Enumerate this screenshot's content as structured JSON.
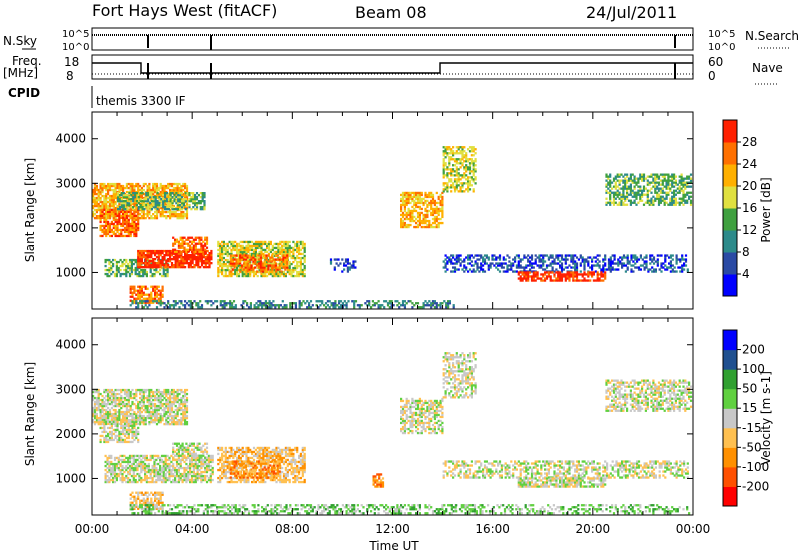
{
  "header": {
    "station": "Fort Hays West (fitACF)",
    "beam": "Beam 08",
    "date": "24/Jul/2011"
  },
  "status_panels": {
    "nsky_label": "N.Sky",
    "nsearch_label": "N.Search",
    "nsky_ticks": [
      "10^5",
      "10^0"
    ],
    "freq_label_1": "Freq.",
    "freq_label_2": "[MHz]",
    "freq_ticks": [
      "18",
      "8"
    ],
    "nave_label": "Nave",
    "nave_ticks": [
      "60",
      "0"
    ],
    "cpid_label": "CPID",
    "cpid_text": "themis 3300 IF"
  },
  "chart_data": [
    {
      "type": "heatmap",
      "name": "power",
      "ylabel": "Slant Range [km]",
      "xlabel": "",
      "x_range_hours": [
        0,
        24
      ],
      "ylim": [
        180,
        4600
      ],
      "yticks": [
        1000,
        2000,
        3000,
        4000
      ],
      "colorbar_label": "Power [dB]",
      "colorbar_ticks": [
        "28",
        "24",
        "20",
        "16",
        "12",
        "8",
        "4"
      ],
      "colorbar_colors": [
        "#0000ff",
        "#2a4aa4",
        "#2c8a8a",
        "#3fa03f",
        "#e0e040",
        "#ffb000",
        "#ff7000",
        "#ff2000"
      ],
      "regions": [
        {
          "t0": 0.0,
          "t1": 3.8,
          "r0": 2200,
          "r1": 3000,
          "level": 5,
          "density": 0.75
        },
        {
          "t0": 0.3,
          "t1": 1.8,
          "r0": 1800,
          "r1": 2400,
          "level": 6,
          "density": 0.7
        },
        {
          "t0": 1.0,
          "t1": 4.5,
          "r0": 2400,
          "r1": 2800,
          "level": 3,
          "density": 0.6
        },
        {
          "t0": 0.5,
          "t1": 3.0,
          "r0": 900,
          "r1": 1300,
          "level": 3,
          "density": 0.6
        },
        {
          "t0": 1.8,
          "t1": 4.8,
          "r0": 1100,
          "r1": 1500,
          "level": 7,
          "density": 0.8
        },
        {
          "t0": 3.2,
          "t1": 4.6,
          "r0": 1400,
          "r1": 1800,
          "level": 6,
          "density": 0.7
        },
        {
          "t0": 1.5,
          "t1": 2.8,
          "r0": 300,
          "r1": 700,
          "level": 6,
          "density": 0.7
        },
        {
          "t0": 5.0,
          "t1": 8.5,
          "r0": 900,
          "r1": 1700,
          "level": 4,
          "density": 0.7
        },
        {
          "t0": 5.5,
          "t1": 7.8,
          "r0": 1000,
          "r1": 1400,
          "level": 6,
          "density": 0.6
        },
        {
          "t0": 12.3,
          "t1": 14.0,
          "r0": 2000,
          "r1": 2800,
          "level": 5,
          "density": 0.65
        },
        {
          "t0": 14.0,
          "t1": 15.3,
          "r0": 2800,
          "r1": 3800,
          "level": 4,
          "density": 0.55
        },
        {
          "t0": 14.0,
          "t1": 23.8,
          "r0": 1000,
          "r1": 1400,
          "level": 1,
          "density": 0.5
        },
        {
          "t0": 17.0,
          "t1": 20.5,
          "r0": 800,
          "r1": 1000,
          "level": 7,
          "density": 0.7
        },
        {
          "t0": 20.5,
          "t1": 23.9,
          "r0": 2500,
          "r1": 3200,
          "level": 3,
          "density": 0.6
        },
        {
          "t0": 9.5,
          "t1": 10.5,
          "r0": 1000,
          "r1": 1300,
          "level": 1,
          "density": 0.4
        },
        {
          "t0": 1.5,
          "t1": 14.5,
          "r0": 200,
          "r1": 350,
          "level": 2,
          "density": 0.45
        }
      ]
    },
    {
      "type": "heatmap",
      "name": "velocity",
      "ylabel": "Slant Range [km]",
      "xlabel": "Time UT",
      "x_range_hours": [
        0,
        24
      ],
      "xticks": [
        "00:00",
        "04:00",
        "08:00",
        "12:00",
        "16:00",
        "20:00",
        "00:00"
      ],
      "ylim": [
        180,
        4600
      ],
      "yticks": [
        1000,
        2000,
        3000,
        4000
      ],
      "colorbar_label": "Velocity [m s-1]",
      "colorbar_ticks": [
        "200",
        "100",
        "50",
        "15",
        "-15",
        "-50",
        "-100",
        "-200"
      ],
      "colorbar_colors": [
        "#ff0000",
        "#ff5000",
        "#ff9000",
        "#ffc050",
        "#c8c8c8",
        "#60d040",
        "#30a030",
        "#205090",
        "#0000ff"
      ],
      "regions": [
        {
          "t0": 0.0,
          "t1": 3.8,
          "r0": 2200,
          "r1": 3000,
          "level": 4,
          "density": 0.7
        },
        {
          "t0": 0.3,
          "t1": 1.8,
          "r0": 1800,
          "r1": 2400,
          "level": 4,
          "density": 0.6
        },
        {
          "t0": 0.5,
          "t1": 4.8,
          "r0": 900,
          "r1": 1500,
          "level": 4,
          "density": 0.7
        },
        {
          "t0": 3.2,
          "t1": 4.6,
          "r0": 1400,
          "r1": 1800,
          "level": 4,
          "density": 0.6
        },
        {
          "t0": 1.5,
          "t1": 2.8,
          "r0": 300,
          "r1": 700,
          "level": 3,
          "density": 0.6
        },
        {
          "t0": 5.0,
          "t1": 8.5,
          "r0": 900,
          "r1": 1700,
          "level": 3,
          "density": 0.65
        },
        {
          "t0": 5.5,
          "t1": 7.5,
          "r0": 1000,
          "r1": 1400,
          "level": 2,
          "density": 0.55
        },
        {
          "t0": 12.3,
          "t1": 14.0,
          "r0": 2000,
          "r1": 2800,
          "level": 4,
          "density": 0.6
        },
        {
          "t0": 14.0,
          "t1": 15.3,
          "r0": 2800,
          "r1": 3800,
          "level": 4,
          "density": 0.5
        },
        {
          "t0": 14.0,
          "t1": 23.8,
          "r0": 1000,
          "r1": 1400,
          "level": 4,
          "density": 0.5
        },
        {
          "t0": 17.0,
          "t1": 20.5,
          "r0": 800,
          "r1": 1000,
          "level": 4,
          "density": 0.7
        },
        {
          "t0": 20.5,
          "t1": 23.9,
          "r0": 2500,
          "r1": 3200,
          "level": 4,
          "density": 0.55
        },
        {
          "t0": 11.2,
          "t1": 11.6,
          "r0": 800,
          "r1": 1100,
          "level": 2,
          "density": 0.6
        },
        {
          "t0": 1.5,
          "t1": 14.5,
          "r0": 200,
          "r1": 400,
          "level": 5,
          "density": 0.45
        },
        {
          "t0": 14.5,
          "t1": 23.9,
          "r0": 200,
          "r1": 400,
          "level": 5,
          "density": 0.35
        }
      ]
    }
  ]
}
